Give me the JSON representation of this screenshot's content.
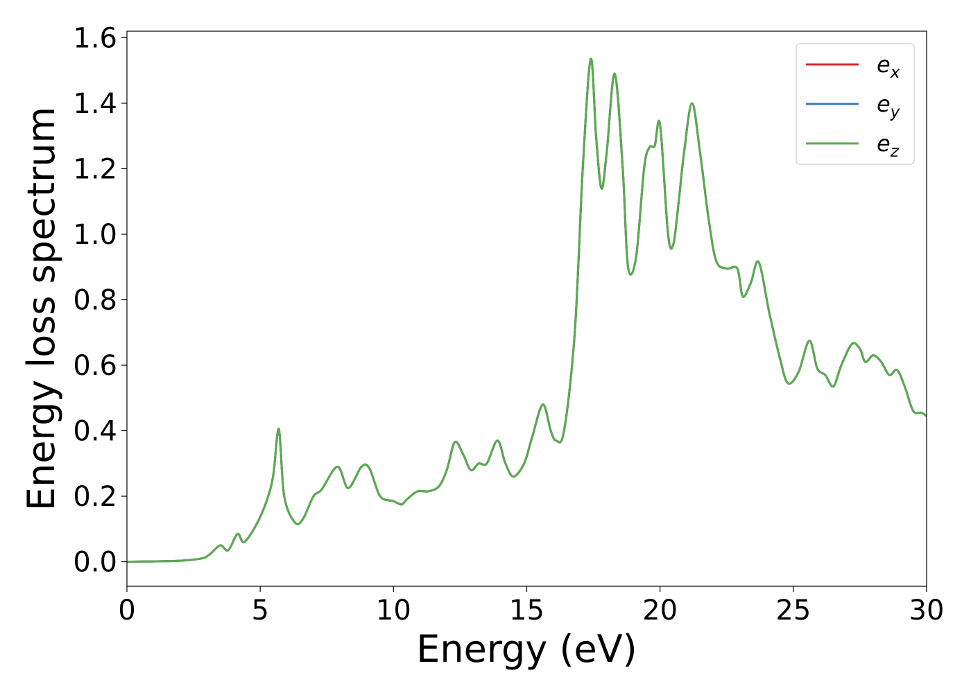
{
  "chart_data": {
    "type": "line",
    "title": "",
    "xlabel": "Energy (eV)",
    "ylabel": "Energy loss spectrum",
    "xlim": [
      0,
      30
    ],
    "ylim": [
      -0.075,
      1.62
    ],
    "xticks": [
      0,
      5,
      10,
      15,
      20,
      25,
      30
    ],
    "yticks": [
      0.0,
      0.2,
      0.4,
      0.6,
      0.8,
      1.0,
      1.2,
      1.4,
      1.6
    ],
    "grid": false,
    "legend": "top-right",
    "x": [
      0,
      1,
      2,
      2.8,
      3.1,
      3.5,
      3.8,
      4.15,
      4.4,
      4.9,
      5.3,
      5.5,
      5.7,
      5.9,
      6.3,
      6.6,
      7.0,
      7.3,
      7.9,
      8.3,
      8.8,
      9.1,
      9.5,
      10.0,
      10.3,
      10.5,
      10.9,
      11.3,
      11.7,
      12.0,
      12.3,
      12.6,
      12.9,
      13.2,
      13.5,
      13.9,
      14.2,
      14.5,
      14.9,
      15.2,
      15.6,
      15.9,
      16.1,
      16.4,
      16.8,
      17.1,
      17.4,
      17.6,
      17.8,
      18.0,
      18.3,
      18.6,
      18.8,
      19.1,
      19.4,
      19.6,
      19.8,
      20.0,
      20.3,
      20.5,
      20.7,
      20.9,
      21.2,
      21.5,
      21.8,
      22.1,
      22.5,
      22.9,
      23.1,
      23.4,
      23.7,
      24.1,
      24.5,
      24.8,
      25.2,
      25.6,
      25.9,
      26.2,
      26.5,
      26.8,
      27.2,
      27.5,
      27.7,
      28.0,
      28.3,
      28.6,
      28.9,
      29.2,
      29.5,
      29.8,
      30.0
    ],
    "series": [
      {
        "name": "e_x",
        "label_base": "e",
        "label_sub": "x",
        "color": "#d62728",
        "values": [
          0.0,
          0.001,
          0.003,
          0.01,
          0.022,
          0.05,
          0.035,
          0.085,
          0.06,
          0.12,
          0.2,
          0.27,
          0.405,
          0.2,
          0.12,
          0.13,
          0.2,
          0.22,
          0.29,
          0.225,
          0.29,
          0.285,
          0.2,
          0.185,
          0.175,
          0.19,
          0.215,
          0.215,
          0.23,
          0.28,
          0.365,
          0.33,
          0.28,
          0.3,
          0.3,
          0.37,
          0.3,
          0.26,
          0.3,
          0.38,
          0.48,
          0.4,
          0.37,
          0.4,
          0.7,
          1.2,
          1.535,
          1.3,
          1.14,
          1.25,
          1.49,
          1.2,
          0.9,
          0.93,
          1.2,
          1.265,
          1.27,
          1.335,
          1.0,
          0.97,
          1.1,
          1.25,
          1.4,
          1.25,
          1.06,
          0.92,
          0.895,
          0.895,
          0.81,
          0.85,
          0.915,
          0.76,
          0.62,
          0.545,
          0.58,
          0.675,
          0.59,
          0.57,
          0.535,
          0.6,
          0.665,
          0.65,
          0.61,
          0.63,
          0.61,
          0.57,
          0.585,
          0.53,
          0.46,
          0.455,
          0.445
        ]
      },
      {
        "name": "e_y",
        "label_base": "e",
        "label_sub": "y",
        "color": "#3a78b5",
        "values": [
          0.0,
          0.001,
          0.003,
          0.01,
          0.022,
          0.05,
          0.035,
          0.085,
          0.06,
          0.12,
          0.2,
          0.27,
          0.405,
          0.2,
          0.12,
          0.13,
          0.2,
          0.22,
          0.29,
          0.225,
          0.29,
          0.285,
          0.2,
          0.185,
          0.175,
          0.19,
          0.215,
          0.215,
          0.23,
          0.28,
          0.365,
          0.33,
          0.28,
          0.3,
          0.3,
          0.37,
          0.3,
          0.26,
          0.3,
          0.38,
          0.48,
          0.4,
          0.37,
          0.4,
          0.7,
          1.2,
          1.535,
          1.3,
          1.14,
          1.25,
          1.49,
          1.2,
          0.9,
          0.93,
          1.2,
          1.265,
          1.27,
          1.335,
          1.0,
          0.97,
          1.1,
          1.25,
          1.4,
          1.25,
          1.06,
          0.92,
          0.895,
          0.895,
          0.81,
          0.85,
          0.915,
          0.76,
          0.62,
          0.545,
          0.58,
          0.675,
          0.59,
          0.57,
          0.535,
          0.6,
          0.665,
          0.65,
          0.61,
          0.63,
          0.61,
          0.57,
          0.585,
          0.53,
          0.46,
          0.455,
          0.445
        ]
      },
      {
        "name": "e_z",
        "label_base": "e",
        "label_sub": "z",
        "color": "#5aab4f",
        "values": [
          0.0,
          0.001,
          0.003,
          0.01,
          0.022,
          0.05,
          0.035,
          0.085,
          0.06,
          0.12,
          0.2,
          0.27,
          0.405,
          0.2,
          0.12,
          0.13,
          0.2,
          0.22,
          0.29,
          0.225,
          0.29,
          0.285,
          0.2,
          0.185,
          0.175,
          0.19,
          0.215,
          0.215,
          0.23,
          0.28,
          0.365,
          0.33,
          0.28,
          0.3,
          0.3,
          0.37,
          0.3,
          0.26,
          0.3,
          0.38,
          0.48,
          0.4,
          0.37,
          0.4,
          0.7,
          1.2,
          1.535,
          1.3,
          1.14,
          1.25,
          1.49,
          1.2,
          0.9,
          0.93,
          1.2,
          1.265,
          1.27,
          1.335,
          1.0,
          0.97,
          1.1,
          1.25,
          1.4,
          1.25,
          1.06,
          0.92,
          0.895,
          0.895,
          0.81,
          0.85,
          0.915,
          0.76,
          0.62,
          0.545,
          0.58,
          0.675,
          0.59,
          0.57,
          0.535,
          0.6,
          0.665,
          0.65,
          0.61,
          0.63,
          0.61,
          0.57,
          0.585,
          0.53,
          0.46,
          0.455,
          0.445
        ]
      }
    ]
  }
}
